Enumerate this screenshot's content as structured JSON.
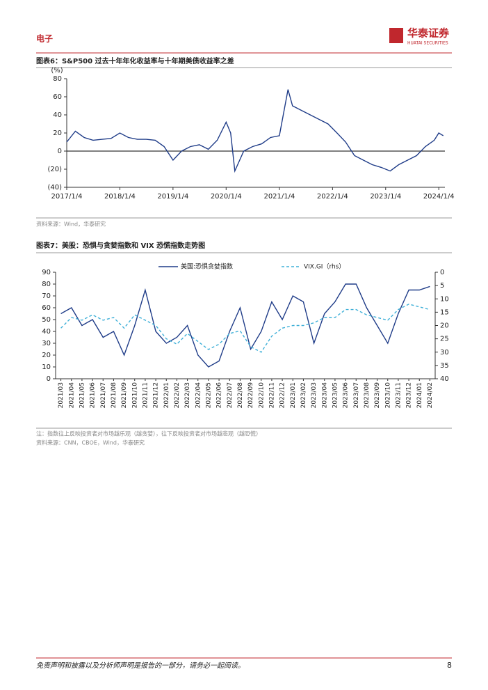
{
  "header": {
    "section": "电子",
    "brand": "华泰证券",
    "brand_en": "HUATAI SECURITIES"
  },
  "chart_data": [
    {
      "type": "line",
      "title": "图表6：S&P500 过去十年年化收益率与十年期美债收益率之差",
      "y_label": "(%)",
      "source": "资料来源：Wind，华泰研究",
      "color": "#1f3c88",
      "x": [
        "2017/1/4",
        "2017/3/4",
        "2017/5/4",
        "2017/7/4",
        "2017/9/4",
        "2017/11/4",
        "2018/1/4",
        "2018/3/4",
        "2018/5/4",
        "2018/7/4",
        "2018/9/4",
        "2018/11/4",
        "2019/1/4",
        "2019/3/4",
        "2019/5/4",
        "2019/7/4",
        "2019/9/4",
        "2019/11/4",
        "2020/1/4",
        "2020/2/4",
        "2020/3/4",
        "2020/5/4",
        "2020/7/4",
        "2020/9/4",
        "2020/11/4",
        "2021/1/4",
        "2021/3/4",
        "2021/4/4",
        "2021/6/4",
        "2021/8/4",
        "2021/10/4",
        "2021/12/4",
        "2022/2/4",
        "2022/4/4",
        "2022/6/4",
        "2022/8/4",
        "2022/10/4",
        "2022/12/4",
        "2023/2/4",
        "2023/4/4",
        "2023/6/4",
        "2023/8/4",
        "2023/10/4",
        "2023/12/4",
        "2024/1/4",
        "2024/2/4"
      ],
      "values": [
        10,
        22,
        15,
        12,
        13,
        14,
        20,
        15,
        13,
        13,
        12,
        5,
        -10,
        0,
        5,
        7,
        2,
        12,
        32,
        20,
        -22,
        0,
        5,
        8,
        15,
        17,
        68,
        50,
        45,
        40,
        35,
        30,
        20,
        10,
        -5,
        -10,
        -15,
        -18,
        -22,
        -15,
        -10,
        -5,
        5,
        12,
        20,
        17
      ],
      "xlim": [
        "2017/1/4",
        "2024/2/15"
      ],
      "xticks": [
        "2017/1/4",
        "2018/1/4",
        "2019/1/4",
        "2020/1/4",
        "2021/1/4",
        "2022/1/4",
        "2023/1/4",
        "2024/1/4"
      ],
      "ylim": [
        -40,
        80
      ],
      "yticks": [
        {
          "value": -40,
          "label": "(40)"
        },
        {
          "value": -20,
          "label": "(20)"
        },
        0,
        20,
        40,
        60,
        80
      ]
    },
    {
      "type": "line",
      "title": "图表7：美股：恐惧与贪婪指数和 VIX 恐慌指数走势图",
      "note": "注：指数往上反映投资者对市场越乐观（越贪婪），往下反映投资者对市场越悲观（越恐慌）",
      "source": "资料来源：CNN，CBOE，Wind，华泰研究",
      "categories": [
        "2021/03",
        "2021/04",
        "2021/05",
        "2021/06",
        "2021/07",
        "2021/08",
        "2021/09",
        "2021/10",
        "2021/11",
        "2021/12",
        "2022/01",
        "2022/02",
        "2022/03",
        "2022/04",
        "2022/05",
        "2022/06",
        "2022/07",
        "2022/08",
        "2022/09",
        "2022/10",
        "2022/11",
        "2022/12",
        "2023/01",
        "2023/02",
        "2023/03",
        "2023/04",
        "2023/05",
        "2023/06",
        "2023/07",
        "2023/08",
        "2023/09",
        "2023/10",
        "2023/11",
        "2023/12",
        "2024/01",
        "2024/02"
      ],
      "series": [
        {
          "name": "美国:恐惧贪婪指数",
          "color": "#1f3c88",
          "line_style": "solid",
          "values": [
            55,
            60,
            45,
            50,
            35,
            40,
            20,
            45,
            75,
            40,
            30,
            35,
            45,
            20,
            10,
            15,
            40,
            60,
            25,
            40,
            65,
            50,
            70,
            65,
            30,
            55,
            65,
            80,
            80,
            60,
            45,
            30,
            55,
            75,
            75,
            78
          ]
        },
        {
          "name": "VIX.GI（rhs）",
          "color": "#3fb0d8",
          "line_style": "dashed",
          "axis": "y2",
          "values": [
            21,
            17,
            18,
            16,
            18,
            17,
            21,
            16,
            18,
            20,
            25,
            27,
            23,
            26,
            29,
            27,
            23,
            22,
            28,
            30,
            24,
            21,
            20,
            20,
            19,
            17,
            17,
            14,
            14,
            16,
            17,
            18,
            14,
            12,
            13,
            14
          ]
        }
      ],
      "ylim": [
        0,
        90
      ],
      "yticks": [
        0,
        10,
        20,
        30,
        40,
        50,
        60,
        70,
        80,
        90
      ],
      "y2lim": [
        0,
        40
      ],
      "y2ticks": [
        0,
        5,
        10,
        15,
        20,
        25,
        30,
        35,
        40
      ],
      "y2_inverted": true
    }
  ],
  "footer": {
    "disclaimer": "免责声明和披露以及分析师声明是报告的一部分，请务必一起阅读。",
    "page": "8"
  }
}
